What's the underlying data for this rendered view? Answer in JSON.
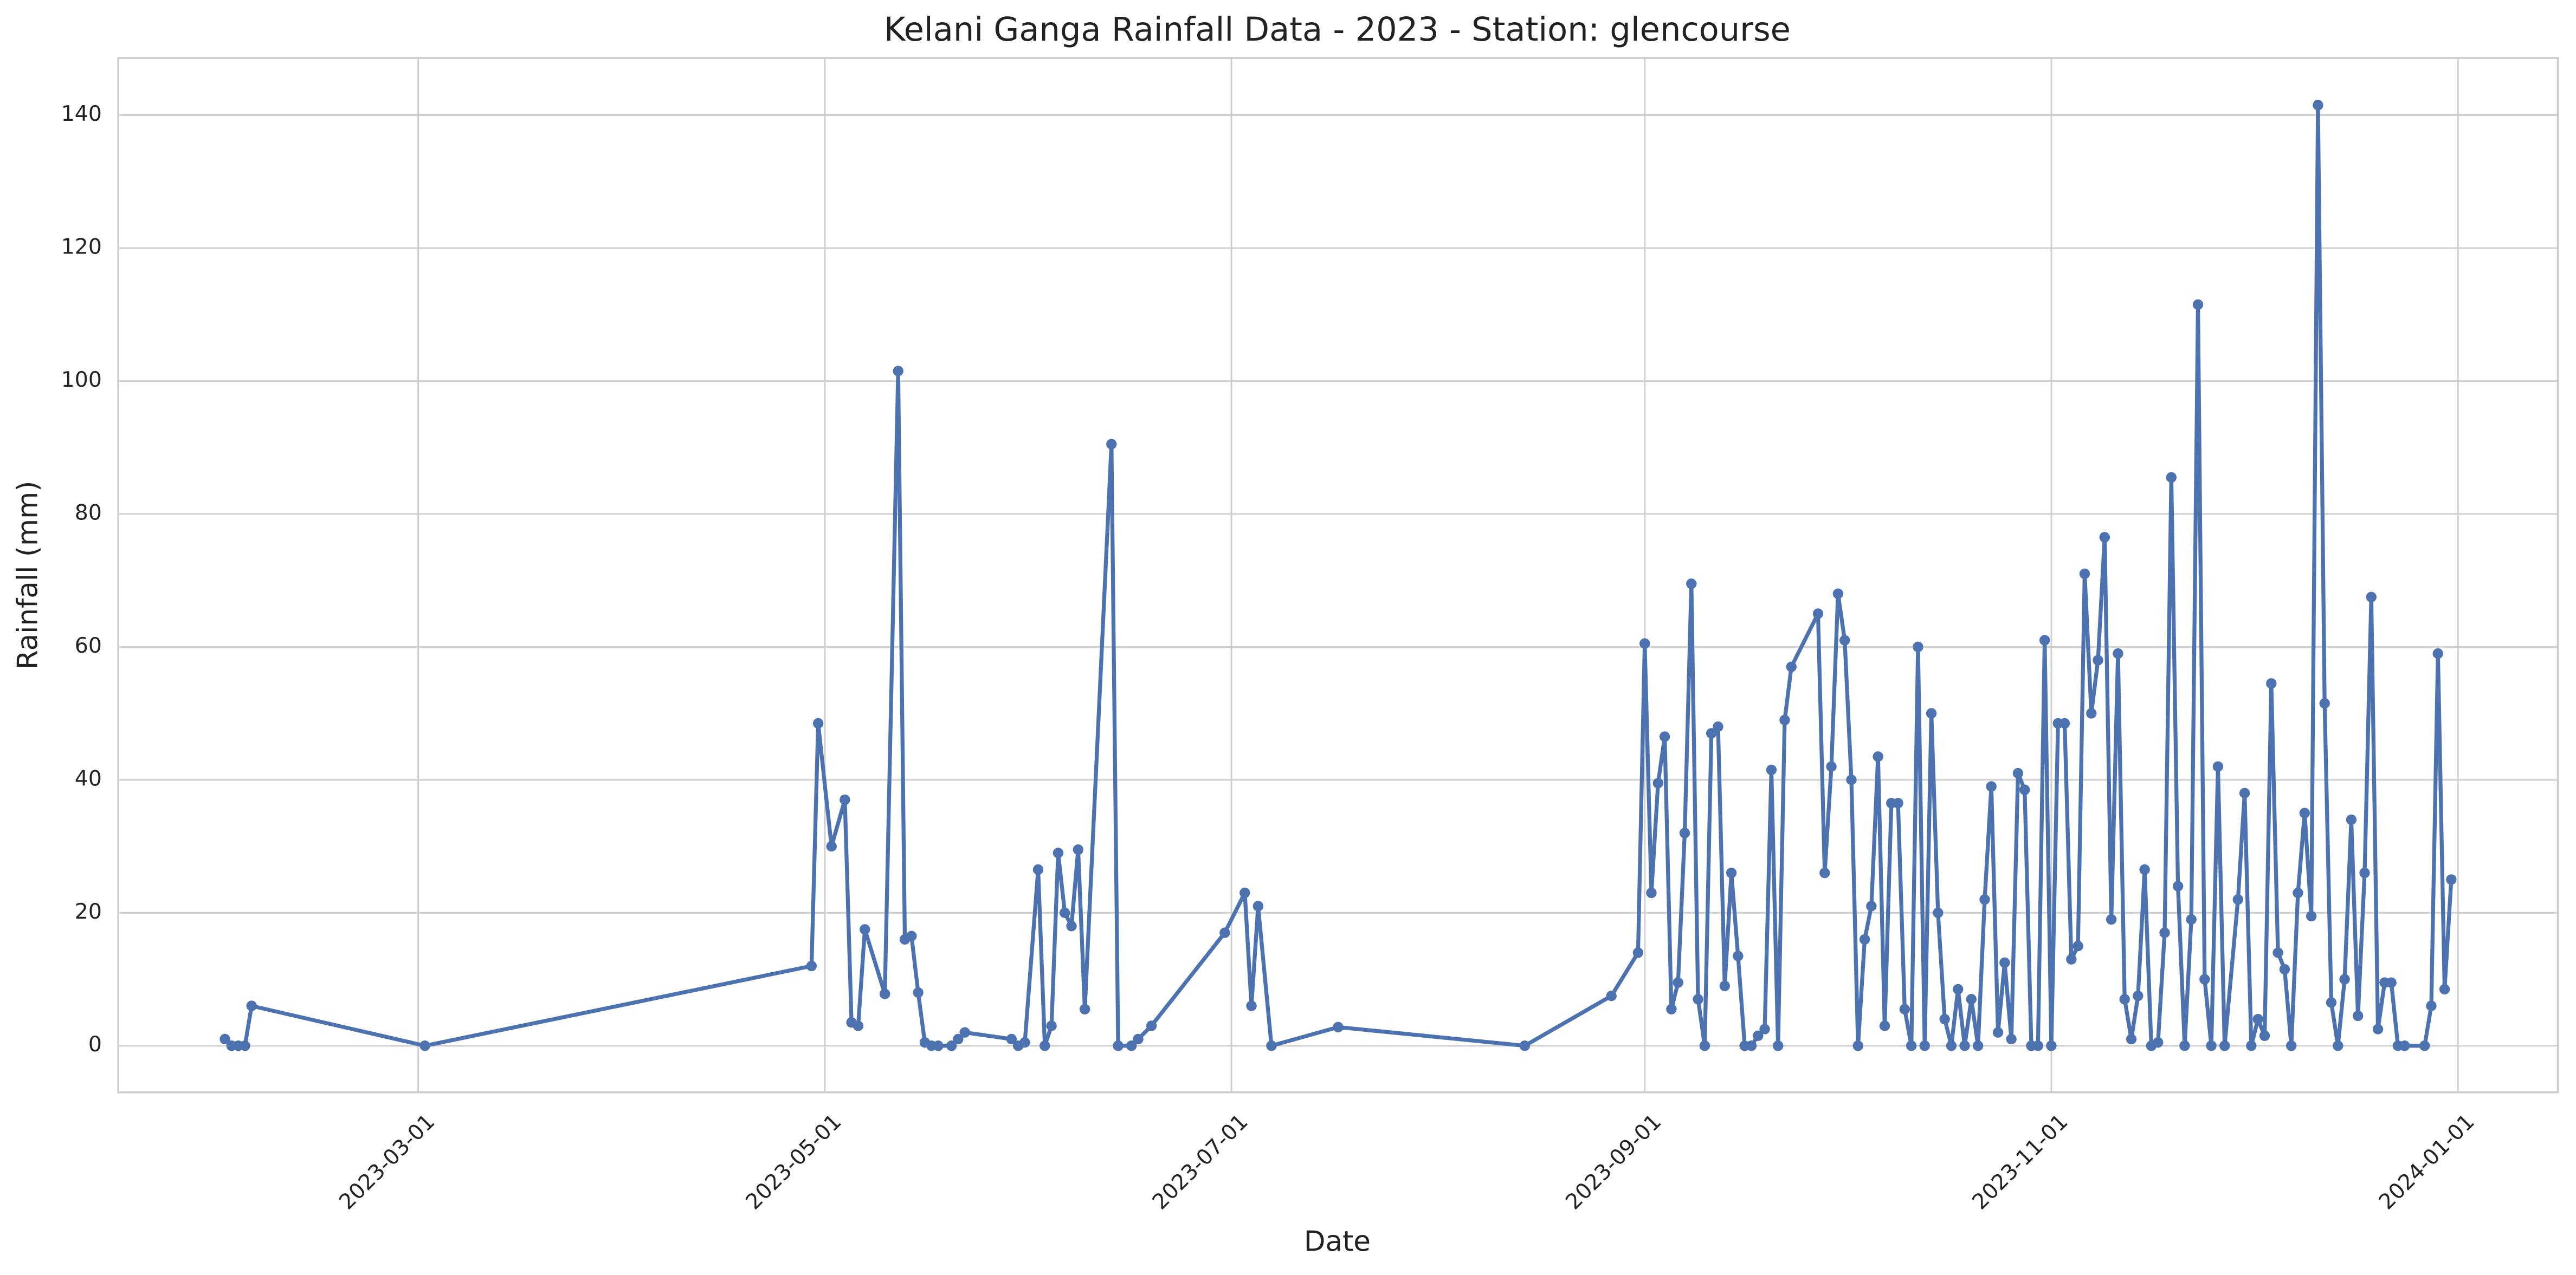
{
  "chart_data": {
    "type": "line",
    "title": "Kelani Ganga Rainfall Data - 2023 - Station: glencourse",
    "x_label": "Date",
    "y_label": "Rainfall (mm)",
    "color": "#4c72b0",
    "grid": true,
    "markers": true,
    "xlim": [
      "2023-01-15",
      "2024-01-16"
    ],
    "xticks": [
      "2023-03-01",
      "2023-05-01",
      "2023-07-01",
      "2023-09-01",
      "2023-11-01",
      "2024-01-01"
    ],
    "ylim": [
      -7,
      148.6
    ],
    "yticks": [
      0,
      20,
      40,
      60,
      80,
      100,
      120,
      140
    ],
    "x": [
      "2023-01-31",
      "2023-02-01",
      "2023-02-02",
      "2023-02-03",
      "2023-02-04",
      "2023-03-02",
      "2023-04-29",
      "2023-04-30",
      "2023-05-02",
      "2023-05-04",
      "2023-05-05",
      "2023-05-06",
      "2023-05-07",
      "2023-05-10",
      "2023-05-12",
      "2023-05-13",
      "2023-05-14",
      "2023-05-15",
      "2023-05-16",
      "2023-05-17",
      "2023-05-18",
      "2023-05-20",
      "2023-05-21",
      "2023-05-22",
      "2023-05-29",
      "2023-05-30",
      "2023-05-31",
      "2023-06-02",
      "2023-06-03",
      "2023-06-04",
      "2023-06-05",
      "2023-06-06",
      "2023-06-07",
      "2023-06-08",
      "2023-06-09",
      "2023-06-13",
      "2023-06-14",
      "2023-06-16",
      "2023-06-17",
      "2023-06-19",
      "2023-06-30",
      "2023-07-03",
      "2023-07-04",
      "2023-07-05",
      "2023-07-07",
      "2023-07-17",
      "2023-08-14",
      "2023-08-27",
      "2023-08-31",
      "2023-09-01",
      "2023-09-02",
      "2023-09-03",
      "2023-09-04",
      "2023-09-05",
      "2023-09-06",
      "2023-09-07",
      "2023-09-08",
      "2023-09-09",
      "2023-09-10",
      "2023-09-11",
      "2023-09-12",
      "2023-09-13",
      "2023-09-14",
      "2023-09-15",
      "2023-09-16",
      "2023-09-17",
      "2023-09-18",
      "2023-09-19",
      "2023-09-20",
      "2023-09-21",
      "2023-09-22",
      "2023-09-23",
      "2023-09-27",
      "2023-09-28",
      "2023-09-29",
      "2023-09-30",
      "2023-10-01",
      "2023-10-02",
      "2023-10-03",
      "2023-10-04",
      "2023-10-05",
      "2023-10-06",
      "2023-10-07",
      "2023-10-08",
      "2023-10-09",
      "2023-10-10",
      "2023-10-11",
      "2023-10-12",
      "2023-10-13",
      "2023-10-14",
      "2023-10-15",
      "2023-10-16",
      "2023-10-17",
      "2023-10-18",
      "2023-10-19",
      "2023-10-20",
      "2023-10-21",
      "2023-10-22",
      "2023-10-23",
      "2023-10-24",
      "2023-10-25",
      "2023-10-26",
      "2023-10-27",
      "2023-10-28",
      "2023-10-29",
      "2023-10-30",
      "2023-10-31",
      "2023-11-01",
      "2023-11-02",
      "2023-11-03",
      "2023-11-04",
      "2023-11-05",
      "2023-11-06",
      "2023-11-07",
      "2023-11-08",
      "2023-11-09",
      "2023-11-10",
      "2023-11-11",
      "2023-11-12",
      "2023-11-13",
      "2023-11-14",
      "2023-11-15",
      "2023-11-16",
      "2023-11-17",
      "2023-11-18",
      "2023-11-19",
      "2023-11-20",
      "2023-11-21",
      "2023-11-22",
      "2023-11-23",
      "2023-11-24",
      "2023-11-25",
      "2023-11-26",
      "2023-11-27",
      "2023-11-29",
      "2023-11-30",
      "2023-12-01",
      "2023-12-02",
      "2023-12-03",
      "2023-12-04",
      "2023-12-05",
      "2023-12-06",
      "2023-12-07",
      "2023-12-08",
      "2023-12-09",
      "2023-12-10",
      "2023-12-11",
      "2023-12-12",
      "2023-12-13",
      "2023-12-14",
      "2023-12-15",
      "2023-12-16",
      "2023-12-17",
      "2023-12-18",
      "2023-12-19",
      "2023-12-20",
      "2023-12-21",
      "2023-12-22",
      "2023-12-23",
      "2023-12-24",
      "2023-12-27",
      "2023-12-28",
      "2023-12-29",
      "2023-12-30",
      "2023-12-31"
    ],
    "values": [
      1,
      0,
      0,
      0,
      6,
      0,
      12,
      48.5,
      30,
      37,
      3.5,
      3,
      17.5,
      7.8,
      101.5,
      16,
      16.5,
      8,
      0.5,
      0,
      0,
      0,
      1,
      2,
      1,
      0,
      0.5,
      26.5,
      0,
      3,
      29,
      20,
      18,
      29.5,
      5.5,
      90.5,
      0,
      0,
      1,
      3,
      17,
      23,
      6,
      21,
      0,
      2.8,
      0,
      7.5,
      14,
      60.5,
      23,
      39.5,
      46.5,
      5.5,
      9.5,
      32,
      69.5,
      7,
      0,
      47,
      48,
      9,
      26,
      13.5,
      0,
      0,
      1.5,
      2.5,
      41.5,
      0,
      49,
      57,
      65,
      26,
      42,
      68,
      61,
      40,
      0,
      16,
      21,
      43.5,
      3,
      36.5,
      36.5,
      5.5,
      0,
      60,
      0,
      50,
      20,
      4,
      0,
      8.5,
      0,
      7,
      0,
      22,
      39,
      2,
      12.5,
      1,
      41,
      38.5,
      0,
      0,
      61,
      0,
      48.5,
      48.5,
      13,
      15,
      71,
      50,
      58,
      76.5,
      19,
      59,
      7,
      1,
      7.5,
      26.5,
      0,
      0.5,
      17,
      85.5,
      24,
      0,
      19,
      111.5,
      10,
      0,
      42,
      0,
      22,
      38,
      0,
      4,
      1.5,
      54.5,
      14,
      11.5,
      0,
      23,
      35,
      19.5,
      141.5,
      51.5,
      6.5,
      0,
      10,
      34,
      4.5,
      26,
      67.5,
      2.5,
      9.5,
      9.5,
      0,
      0,
      0,
      6,
      59,
      8.5,
      25
    ]
  }
}
